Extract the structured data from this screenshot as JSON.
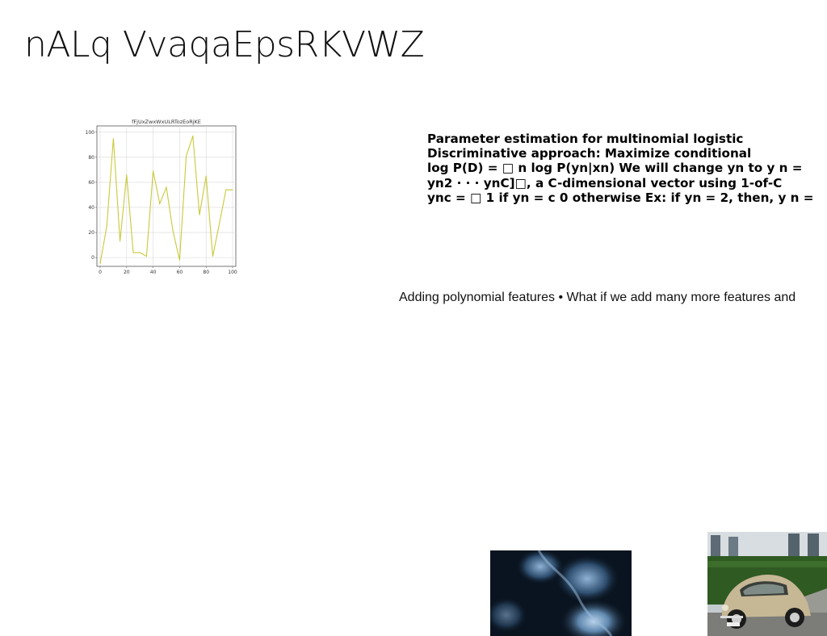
{
  "slide": {
    "title": "nALq VvaqaEpsRKVWZ",
    "body_lines": [
      "Parameter estimation for multinomial logistic",
      "Discriminative approach: Maximize conditional",
      "log P(D) = □ n log P(yn|xn) We will change yn to y n =",
      "yn2 · · · ynC]□, a C-dimensional vector using 1-of-C",
      "ync = □ 1 if yn = c 0 otherwise Ex: if yn = 2, then, y n ="
    ],
    "caption": "Adding polynomial features • What if we add many more features and"
  },
  "chart_data": {
    "type": "line",
    "title": "fFjUxZwxWxULRTozEoRjKE",
    "xlabel": "",
    "ylabel": "",
    "xlim": [
      0,
      100
    ],
    "ylim": [
      0,
      100
    ],
    "x_ticks": [
      0,
      20,
      40,
      60,
      80,
      100
    ],
    "y_ticks": [
      0,
      20,
      40,
      60,
      80,
      100
    ],
    "grid": true,
    "line_color": "#c9c93a",
    "x": [
      0,
      5,
      10,
      15,
      20,
      25,
      30,
      35,
      40,
      45,
      50,
      55,
      60,
      65,
      70,
      75,
      80,
      85,
      90,
      95,
      100
    ],
    "y": [
      -5,
      25,
      95,
      13,
      66,
      4,
      4,
      1,
      69,
      43,
      56,
      21,
      -2,
      81,
      97,
      34,
      65,
      1,
      27,
      54,
      54
    ]
  },
  "images": [
    {
      "name": "blue-smoke-photo",
      "alt": "dark blue smoke"
    },
    {
      "name": "vintage-beetle-photo",
      "alt": "beige vintage car parked by hedge"
    }
  ]
}
